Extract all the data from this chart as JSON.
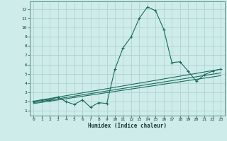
{
  "xlabel": "Humidex (Indice chaleur)",
  "bg_color": "#ceecea",
  "grid_color": "#afd4d0",
  "line_color": "#1a6b5a",
  "spine_color": "#5a8a80",
  "xlim": [
    -0.5,
    23.5
  ],
  "ylim": [
    0.5,
    12.8
  ],
  "xticks": [
    0,
    1,
    2,
    3,
    4,
    5,
    6,
    7,
    8,
    9,
    10,
    11,
    12,
    13,
    14,
    15,
    16,
    17,
    18,
    19,
    20,
    21,
    22,
    23
  ],
  "yticks": [
    1,
    2,
    3,
    4,
    5,
    6,
    7,
    8,
    9,
    10,
    11,
    12
  ],
  "main_x": [
    0,
    1,
    2,
    3,
    4,
    5,
    6,
    7,
    8,
    9,
    10,
    11,
    12,
    13,
    14,
    15,
    16,
    17,
    18,
    19,
    20,
    21,
    22,
    23
  ],
  "main_y": [
    2.0,
    2.2,
    2.2,
    2.5,
    2.0,
    1.7,
    2.2,
    1.4,
    1.9,
    1.8,
    5.5,
    7.8,
    9.0,
    11.0,
    12.2,
    11.8,
    9.8,
    6.2,
    6.3,
    5.3,
    4.2,
    4.9,
    5.3,
    5.5
  ],
  "line1_x": [
    0,
    23
  ],
  "line1_y": [
    1.8,
    4.8
  ],
  "line2_x": [
    0,
    23
  ],
  "line2_y": [
    1.9,
    5.1
  ],
  "line3_x": [
    0,
    23
  ],
  "line3_y": [
    2.05,
    5.5
  ]
}
